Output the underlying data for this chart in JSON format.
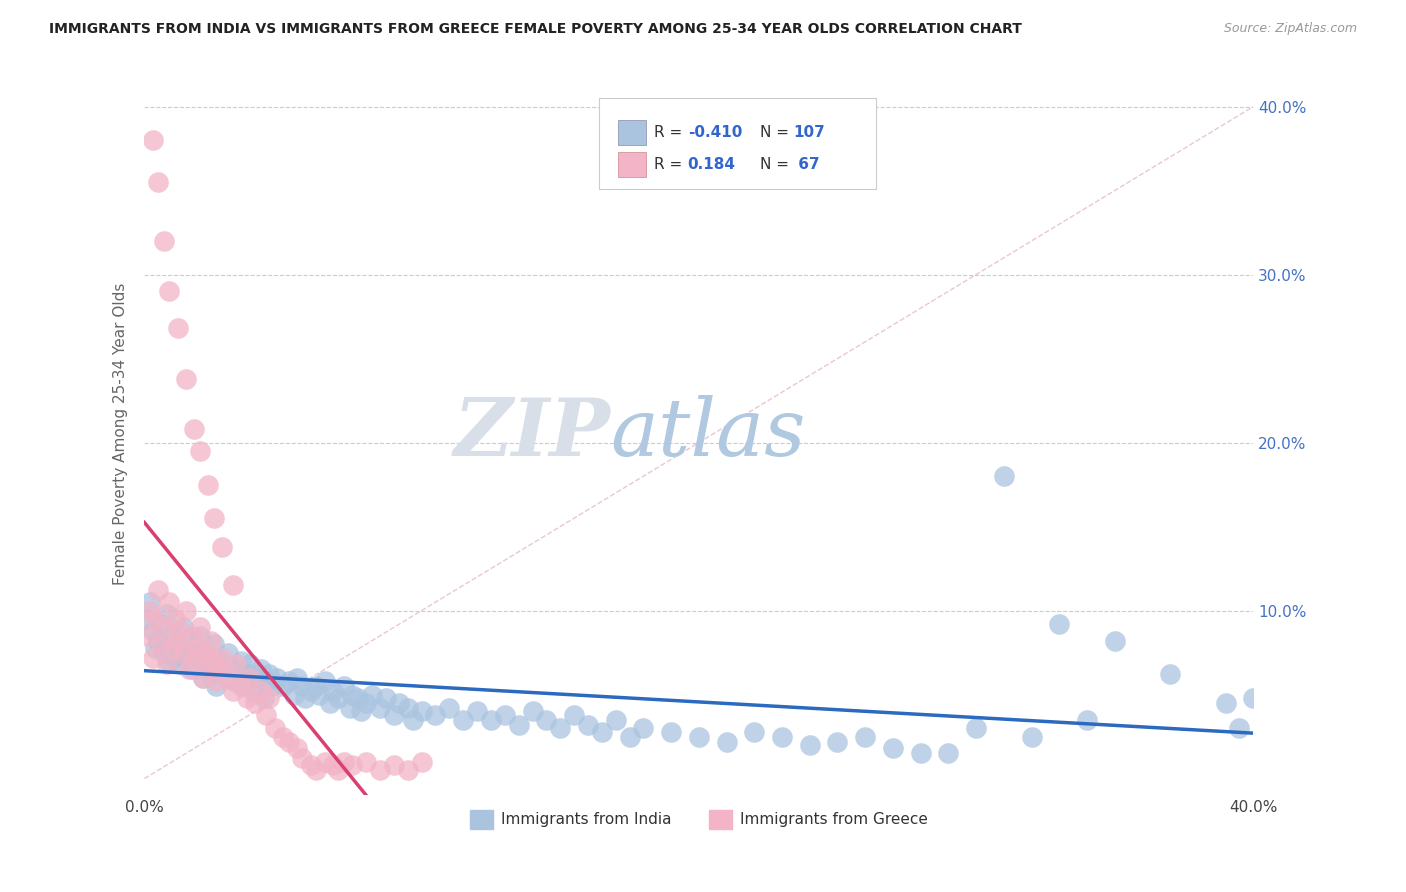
{
  "title": "IMMIGRANTS FROM INDIA VS IMMIGRANTS FROM GREECE FEMALE POVERTY AMONG 25-34 YEAR OLDS CORRELATION CHART",
  "source": "Source: ZipAtlas.com",
  "ylabel": "Female Poverty Among 25-34 Year Olds",
  "y_tick_vals": [
    0.1,
    0.2,
    0.3,
    0.4
  ],
  "y_tick_labels": [
    "10.0%",
    "20.0%",
    "30.0%",
    "40.0%"
  ],
  "x_lim": [
    0.0,
    0.4
  ],
  "y_lim": [
    -0.01,
    0.42
  ],
  "legend_label_india": "Immigrants from India",
  "legend_label_greece": "Immigrants from Greece",
  "india_color": "#aac4e0",
  "greece_color": "#f2b4c6",
  "india_line_color": "#2b6abf",
  "greece_line_color": "#d94070",
  "india_R": "-0.410",
  "india_N": "107",
  "greece_R": "0.184",
  "greece_N": "67",
  "watermark_zip": "ZIP",
  "watermark_atlas": "atlas",
  "background_color": "#ffffff",
  "india_points_x": [
    0.001,
    0.002,
    0.003,
    0.004,
    0.005,
    0.006,
    0.007,
    0.008,
    0.009,
    0.01,
    0.011,
    0.012,
    0.013,
    0.014,
    0.015,
    0.016,
    0.017,
    0.018,
    0.019,
    0.02,
    0.021,
    0.022,
    0.023,
    0.024,
    0.025,
    0.026,
    0.027,
    0.028,
    0.03,
    0.032,
    0.033,
    0.035,
    0.036,
    0.037,
    0.038,
    0.039,
    0.04,
    0.042,
    0.043,
    0.044,
    0.045,
    0.046,
    0.048,
    0.05,
    0.052,
    0.054,
    0.055,
    0.057,
    0.058,
    0.06,
    0.062,
    0.063,
    0.065,
    0.067,
    0.068,
    0.07,
    0.072,
    0.074,
    0.075,
    0.077,
    0.078,
    0.08,
    0.082,
    0.085,
    0.087,
    0.09,
    0.092,
    0.095,
    0.097,
    0.1,
    0.105,
    0.11,
    0.115,
    0.12,
    0.125,
    0.13,
    0.135,
    0.14,
    0.145,
    0.15,
    0.155,
    0.16,
    0.165,
    0.17,
    0.175,
    0.18,
    0.19,
    0.2,
    0.21,
    0.22,
    0.23,
    0.24,
    0.25,
    0.27,
    0.29,
    0.31,
    0.33,
    0.35,
    0.37,
    0.39,
    0.395,
    0.4,
    0.26,
    0.28,
    0.3,
    0.32,
    0.34
  ],
  "india_points_y": [
    0.095,
    0.105,
    0.088,
    0.078,
    0.082,
    0.092,
    0.075,
    0.098,
    0.07,
    0.085,
    0.072,
    0.08,
    0.068,
    0.09,
    0.075,
    0.082,
    0.065,
    0.078,
    0.072,
    0.085,
    0.06,
    0.075,
    0.068,
    0.062,
    0.08,
    0.055,
    0.07,
    0.065,
    0.075,
    0.058,
    0.065,
    0.07,
    0.055,
    0.062,
    0.068,
    0.052,
    0.06,
    0.065,
    0.048,
    0.058,
    0.062,
    0.055,
    0.06,
    0.055,
    0.058,
    0.05,
    0.06,
    0.055,
    0.048,
    0.052,
    0.055,
    0.05,
    0.058,
    0.045,
    0.052,
    0.048,
    0.055,
    0.042,
    0.05,
    0.048,
    0.04,
    0.045,
    0.05,
    0.042,
    0.048,
    0.038,
    0.045,
    0.042,
    0.035,
    0.04,
    0.038,
    0.042,
    0.035,
    0.04,
    0.035,
    0.038,
    0.032,
    0.04,
    0.035,
    0.03,
    0.038,
    0.032,
    0.028,
    0.035,
    0.025,
    0.03,
    0.028,
    0.025,
    0.022,
    0.028,
    0.025,
    0.02,
    0.022,
    0.018,
    0.015,
    0.18,
    0.092,
    0.082,
    0.062,
    0.045,
    0.03,
    0.048,
    0.025,
    0.015,
    0.03,
    0.025,
    0.035
  ],
  "greece_points_x": [
    0.001,
    0.002,
    0.003,
    0.004,
    0.005,
    0.006,
    0.007,
    0.008,
    0.009,
    0.01,
    0.011,
    0.012,
    0.013,
    0.014,
    0.015,
    0.016,
    0.017,
    0.018,
    0.019,
    0.02,
    0.021,
    0.022,
    0.023,
    0.024,
    0.025,
    0.026,
    0.027,
    0.028,
    0.03,
    0.032,
    0.033,
    0.035,
    0.037,
    0.038,
    0.04,
    0.042,
    0.044,
    0.045,
    0.047,
    0.05,
    0.052,
    0.055,
    0.057,
    0.06,
    0.062,
    0.065,
    0.068,
    0.07,
    0.072,
    0.075,
    0.08,
    0.085,
    0.09,
    0.095,
    0.1,
    0.003,
    0.005,
    0.007,
    0.009,
    0.012,
    0.015,
    0.018,
    0.02,
    0.023,
    0.025,
    0.028,
    0.032
  ],
  "greece_points_y": [
    0.085,
    0.1,
    0.072,
    0.095,
    0.112,
    0.08,
    0.09,
    0.068,
    0.105,
    0.078,
    0.095,
    0.082,
    0.088,
    0.075,
    0.1,
    0.065,
    0.085,
    0.072,
    0.078,
    0.09,
    0.06,
    0.075,
    0.068,
    0.082,
    0.07,
    0.058,
    0.065,
    0.072,
    0.06,
    0.052,
    0.068,
    0.055,
    0.048,
    0.06,
    0.045,
    0.052,
    0.038,
    0.048,
    0.03,
    0.025,
    0.022,
    0.018,
    0.012,
    0.008,
    0.005,
    0.01,
    0.008,
    0.005,
    0.01,
    0.008,
    0.01,
    0.005,
    0.008,
    0.005,
    0.01,
    0.38,
    0.355,
    0.32,
    0.29,
    0.268,
    0.238,
    0.208,
    0.195,
    0.175,
    0.155,
    0.138,
    0.115
  ]
}
